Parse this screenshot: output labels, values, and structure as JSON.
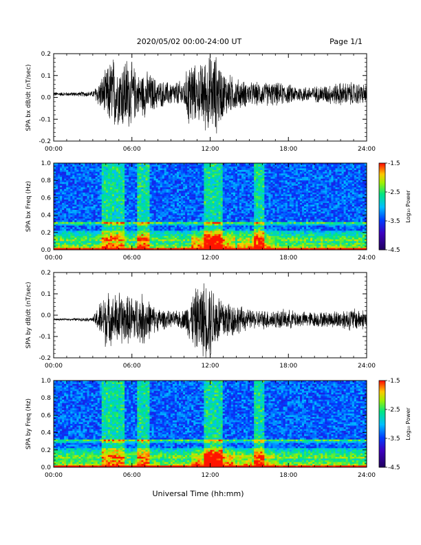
{
  "header": {
    "title": "2020/05/02  00:00-24:00 UT",
    "page": "Page 1/1"
  },
  "xlabel": "Universal Time (hh:mm)",
  "x_ticks": [
    "00:00",
    "06:00",
    "12:00",
    "18:00",
    "24:00"
  ],
  "chart_data": [
    {
      "type": "line",
      "ylabel": "SPA bx dB/dt (nT/sec)",
      "ylim": [
        -0.2,
        0.2
      ],
      "y_ticks": [
        "0.2",
        "0.1",
        "0.0",
        "-0.1",
        "-0.2"
      ],
      "xlim": [
        "00:00",
        "24:00"
      ],
      "envelope": {
        "x_hours": [
          0,
          1,
          2,
          3,
          3.6,
          4,
          4.5,
          5,
          5.5,
          6,
          6.5,
          7,
          7.5,
          8,
          9,
          10,
          10.5,
          11,
          11.5,
          12,
          12.5,
          13,
          13.5,
          14,
          15,
          16,
          17,
          18,
          19,
          20,
          21,
          22,
          23,
          24
        ],
        "amplitude": [
          0.01,
          0.01,
          0.012,
          0.015,
          0.08,
          0.12,
          0.2,
          0.15,
          0.2,
          0.16,
          0.1,
          0.12,
          0.1,
          0.07,
          0.06,
          0.07,
          0.2,
          0.12,
          0.18,
          0.2,
          0.2,
          0.12,
          0.1,
          0.08,
          0.06,
          0.06,
          0.06,
          0.05,
          0.04,
          0.04,
          0.05,
          0.06,
          0.06,
          0.05
        ]
      }
    },
    {
      "type": "heatmap",
      "ylabel": "SPA bx Freq (Hz)",
      "ylim": [
        0,
        1.0
      ],
      "y_ticks": [
        "1.0",
        "0.8",
        "0.6",
        "0.4",
        "0.2",
        "0.0"
      ],
      "xlim": [
        "00:00",
        "24:00"
      ],
      "colorbar": {
        "label": "Log₁₀ Power",
        "range": [
          -4.5,
          -1.5
        ],
        "ticks": [
          "-1.5",
          "-2.5",
          "-3.5",
          "-4.5"
        ]
      }
    },
    {
      "type": "line",
      "ylabel": "SPA by dB/dt (nT/sec)",
      "ylim": [
        -0.2,
        0.2
      ],
      "y_ticks": [
        "0.2",
        "0.1",
        "0.0",
        "-0.1",
        "-0.2"
      ],
      "xlim": [
        "00:00",
        "24:00"
      ],
      "envelope": {
        "x_hours": [
          0,
          1,
          2,
          3,
          3.6,
          4,
          4.5,
          5,
          5.5,
          6,
          6.5,
          7,
          7.5,
          8,
          9,
          10,
          10.5,
          11,
          11.5,
          12,
          12.5,
          13,
          13.5,
          14,
          15,
          16,
          17,
          18,
          19,
          20,
          21,
          22,
          23,
          24
        ],
        "amplitude": [
          0.005,
          0.005,
          0.008,
          0.01,
          0.1,
          0.15,
          0.12,
          0.15,
          0.12,
          0.13,
          0.12,
          0.14,
          0.08,
          0.06,
          0.04,
          0.05,
          0.12,
          0.17,
          0.2,
          0.2,
          0.15,
          0.12,
          0.1,
          0.08,
          0.05,
          0.05,
          0.05,
          0.05,
          0.04,
          0.04,
          0.04,
          0.05,
          0.06,
          0.05
        ]
      }
    },
    {
      "type": "heatmap",
      "ylabel": "SPA by Freq (Hz)",
      "ylim": [
        0,
        1.0
      ],
      "y_ticks": [
        "1.0",
        "0.8",
        "0.6",
        "0.4",
        "0.2",
        "0.0"
      ],
      "xlim": [
        "00:00",
        "24:00"
      ],
      "colorbar": {
        "label": "Log₁₀ Power",
        "range": [
          -4.5,
          -1.5
        ],
        "ticks": [
          "-1.5",
          "-2.5",
          "-3.5",
          "-4.5"
        ]
      }
    }
  ]
}
